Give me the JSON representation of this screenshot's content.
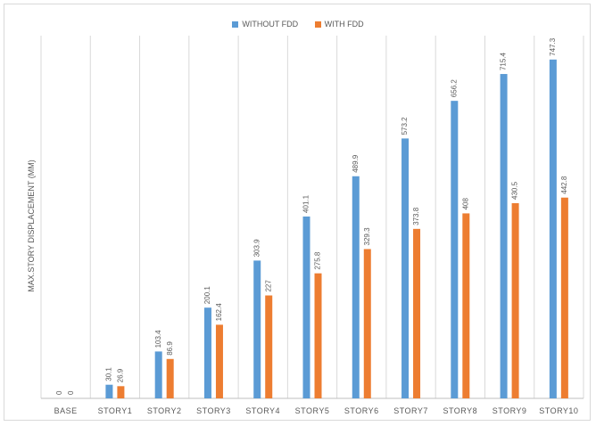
{
  "chart_data": {
    "type": "bar",
    "title": "",
    "xlabel": "",
    "ylabel": "MAX.STORY DISPLACEMENT (MM)",
    "ylim": [
      0,
      800
    ],
    "grid": "vertical category separators",
    "legend_position": "top",
    "categories": [
      "BASE",
      "STORY1",
      "STORY2",
      "STORY3",
      "STORY4",
      "STORY5",
      "STORY6",
      "STORY7",
      "STORY8",
      "STORY9",
      "STORY10"
    ],
    "series": [
      {
        "name": "WITHOUT FDD",
        "color": "#5b9bd5",
        "values": [
          0,
          30.1,
          103.4,
          200.1,
          303.9,
          401.1,
          489.9,
          573.2,
          656.2,
          715.4,
          747.3
        ],
        "labels": [
          "0",
          "30.1",
          "103.4",
          "200.1",
          "303.9",
          "401.1",
          "489.9",
          "573.2",
          "656.2",
          "715.4",
          "747.3"
        ]
      },
      {
        "name": "WITH FDD",
        "color": "#ed7d31",
        "values": [
          0,
          26.9,
          86.9,
          162.4,
          227,
          275.8,
          329.3,
          373.8,
          408,
          430.5,
          442.8
        ],
        "labels": [
          "0",
          "26.9",
          "86.9",
          "162.4",
          "227",
          "275.8",
          "329.3",
          "373.8",
          "408",
          "430.5",
          "442.8"
        ]
      }
    ]
  }
}
